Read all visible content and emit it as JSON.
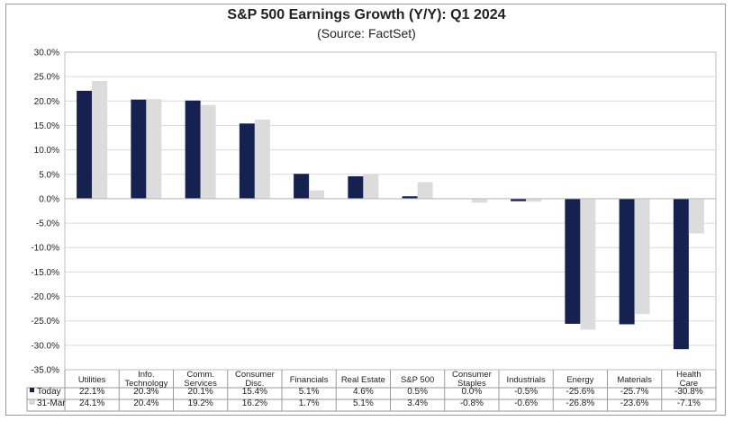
{
  "colors": {
    "today": "#15224f",
    "mar31": "#dcdcdc",
    "grid": "#d9d9d9"
  },
  "chart_data": {
    "type": "bar",
    "title": "S&P 500 Earnings Growth (Y/Y): Q1 2024",
    "subtitle": "(Source: FactSet)",
    "categories": [
      [
        "Utilities"
      ],
      [
        "Info.",
        "Technology"
      ],
      [
        "Comm.",
        "Services"
      ],
      [
        "Consumer",
        "Disc."
      ],
      [
        "Financials"
      ],
      [
        "Real Estate"
      ],
      [
        "S&P 500"
      ],
      [
        "Consumer",
        "Staples"
      ],
      [
        "Industrials"
      ],
      [
        "Energy"
      ],
      [
        "Materials"
      ],
      [
        "Health",
        "Care"
      ]
    ],
    "series": [
      {
        "name": "Today",
        "values": [
          22.1,
          20.3,
          20.1,
          15.4,
          5.1,
          4.6,
          0.5,
          0.0,
          -0.5,
          -25.6,
          -25.7,
          -30.8
        ],
        "labels": [
          "22.1%",
          "20.3%",
          "20.1%",
          "15.4%",
          "5.1%",
          "4.6%",
          "0.5%",
          "0.0%",
          "-0.5%",
          "-25.6%",
          "-25.7%",
          "-30.8%"
        ]
      },
      {
        "name": "31-Mar",
        "values": [
          24.1,
          20.4,
          19.2,
          16.2,
          1.7,
          5.1,
          3.4,
          -0.8,
          -0.6,
          -26.8,
          -23.6,
          -7.1
        ],
        "labels": [
          "24.1%",
          "20.4%",
          "19.2%",
          "16.2%",
          "1.7%",
          "5.1%",
          "3.4%",
          "-0.8%",
          "-0.6%",
          "-26.8%",
          "-23.6%",
          "-7.1%"
        ]
      }
    ],
    "ylim": [
      -35,
      30
    ],
    "yticks": [
      "30.0%",
      "25.0%",
      "20.0%",
      "15.0%",
      "10.0%",
      "5.0%",
      "0.0%",
      "-5.0%",
      "-10.0%",
      "-15.0%",
      "-20.0%",
      "-25.0%",
      "-30.0%",
      "-35.0%"
    ],
    "grid": true,
    "legend": "data-table"
  }
}
